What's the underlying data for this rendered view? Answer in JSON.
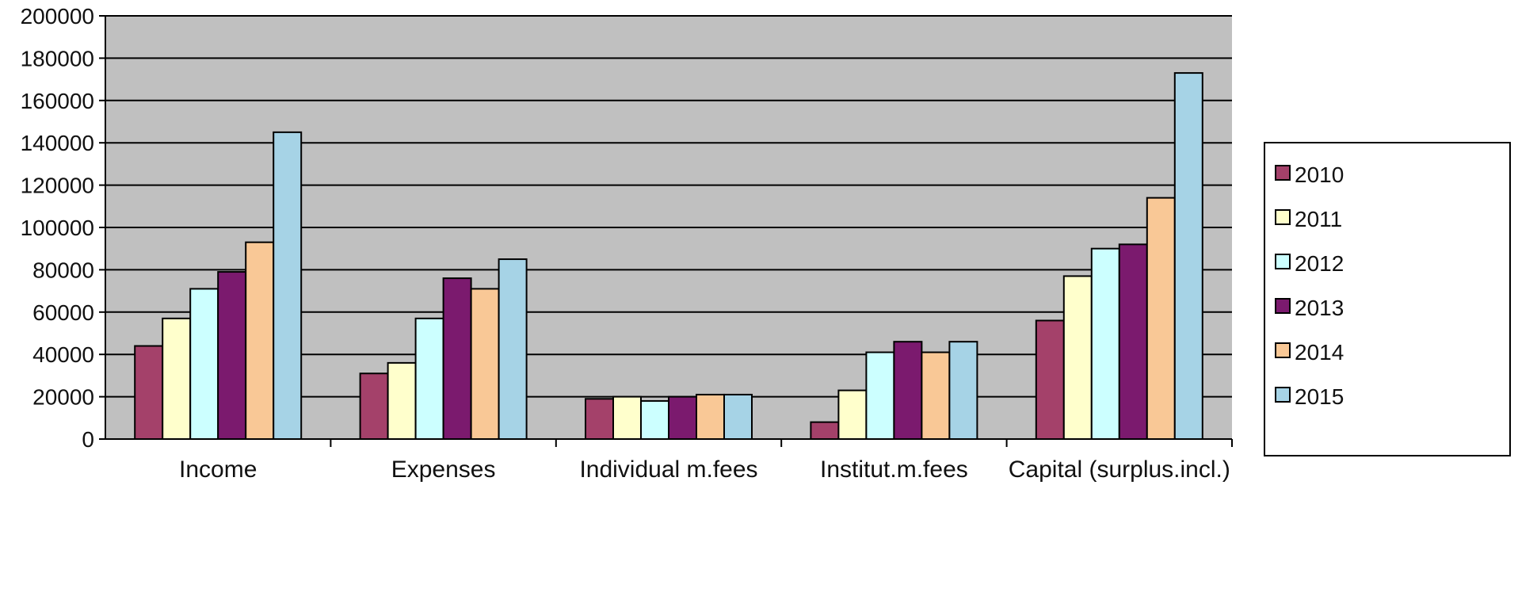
{
  "chart_data": {
    "type": "bar",
    "categories": [
      "Income",
      "Expenses",
      "Individual m.fees",
      "Institut.m.fees",
      "Capital (surplus.incl.)"
    ],
    "series": [
      {
        "name": "2010",
        "color": "#a4416a",
        "values": [
          44000,
          31000,
          19000,
          8000,
          56000
        ]
      },
      {
        "name": "2011",
        "color": "#ffffcc",
        "values": [
          57000,
          36000,
          20000,
          23000,
          77000
        ]
      },
      {
        "name": "2012",
        "color": "#ccffff",
        "values": [
          71000,
          57000,
          18000,
          41000,
          90000
        ]
      },
      {
        "name": "2013",
        "color": "#7b1a6e",
        "values": [
          79000,
          76000,
          20000,
          46000,
          92000
        ]
      },
      {
        "name": "2014",
        "color": "#f9c896",
        "values": [
          93000,
          71000,
          21000,
          41000,
          114000
        ]
      },
      {
        "name": "2015",
        "color": "#a6d3e6",
        "values": [
          145000,
          85000,
          21000,
          46000,
          173000
        ]
      }
    ],
    "ylim": [
      0,
      200000
    ],
    "yticks": [
      0,
      20000,
      40000,
      60000,
      80000,
      100000,
      120000,
      140000,
      160000,
      180000,
      200000
    ],
    "grid": true,
    "plot_background": "#c0c0c0",
    "legend_position": "right"
  }
}
